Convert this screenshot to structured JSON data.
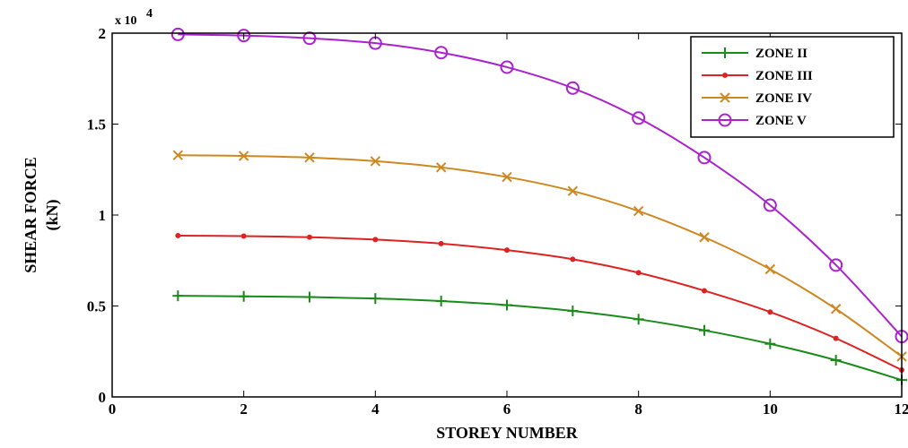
{
  "chart_data": {
    "type": "line",
    "title": "",
    "xlabel": "STOREY NUMBER",
    "ylabel_lines": [
      "SHEAR FORCE",
      "(kN)"
    ],
    "y_multiplier": "x 10",
    "y_multiplier_exp": "4",
    "xlim": [
      0,
      12
    ],
    "ylim": [
      0,
      2
    ],
    "x_ticks": [
      0,
      2,
      4,
      6,
      8,
      10,
      12
    ],
    "x_tick_labels": [
      "0",
      "2",
      "4",
      "6",
      "8",
      "10",
      "12"
    ],
    "y_ticks": [
      0,
      0.5,
      1,
      1.5,
      2
    ],
    "y_tick_labels": [
      "0",
      "0.5",
      "1",
      "1.5",
      "2"
    ],
    "grid": false,
    "legend_position": "top-right",
    "x": [
      1,
      2,
      3,
      4,
      5,
      6,
      7,
      8,
      9,
      10,
      11,
      12
    ],
    "series": [
      {
        "name": "ZONE II",
        "color": "#1a8a1a",
        "marker": "plus",
        "values": [
          0.556,
          0.553,
          0.549,
          0.541,
          0.527,
          0.505,
          0.473,
          0.427,
          0.366,
          0.292,
          0.202,
          0.093
        ]
      },
      {
        "name": "ZONE III",
        "color": "#dd2222",
        "marker": "dot",
        "values": [
          0.887,
          0.884,
          0.878,
          0.865,
          0.843,
          0.807,
          0.757,
          0.683,
          0.584,
          0.467,
          0.322,
          0.148
        ]
      },
      {
        "name": "ZONE IV",
        "color": "#cc8822",
        "marker": "x",
        "values": [
          1.329,
          1.325,
          1.316,
          1.296,
          1.262,
          1.209,
          1.132,
          1.022,
          0.878,
          0.702,
          0.484,
          0.222
        ]
      },
      {
        "name": "ZONE V",
        "color": "#aa22cc",
        "marker": "circle",
        "values": [
          1.993,
          1.987,
          1.972,
          1.945,
          1.893,
          1.813,
          1.698,
          1.533,
          1.316,
          1.054,
          0.725,
          0.332
        ]
      }
    ]
  }
}
